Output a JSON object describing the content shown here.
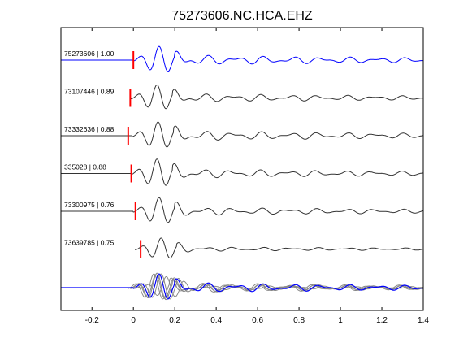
{
  "chart_data": {
    "type": "line",
    "title": "75273606.NC.HCA.EHZ",
    "xlabel": "",
    "ylabel": "",
    "xlim": [
      -0.35,
      1.4
    ],
    "xticks": [
      -0.2,
      0,
      0.2,
      0.4,
      0.6,
      0.8,
      1,
      1.2,
      1.4
    ],
    "xtick_labels": [
      "-0.2",
      "0",
      "0.2",
      "0.4",
      "0.6",
      "0.8",
      "1",
      "1.2",
      "1.4"
    ],
    "grid": false,
    "legend": "none",
    "colors": {
      "reference": "#0000ff",
      "trace": "#333333",
      "pick": "#ff0000",
      "stack_overlay": "#888888"
    },
    "series": [
      {
        "name": "75273606 | 1.00",
        "pick_time": 0.0,
        "lead": 0.0,
        "amp": 1.0,
        "tail": 1.15,
        "color": "#0000ff"
      },
      {
        "name": "73107446 | 0.89",
        "pick_time": -0.015,
        "lead": -0.01,
        "amp": 0.95,
        "tail": 1.05,
        "color": "#333333"
      },
      {
        "name": "73332636 | 0.88",
        "pick_time": -0.025,
        "lead": -0.005,
        "amp": 1.0,
        "tail": 1.15,
        "color": "#333333"
      },
      {
        "name": "335028 | 0.88",
        "pick_time": -0.01,
        "lead": -0.01,
        "amp": 1.05,
        "tail": 1.0,
        "color": "#333333"
      },
      {
        "name": "73300975 | 0.76",
        "pick_time": 0.01,
        "lead": 0.0,
        "amp": 1.0,
        "tail": 0.95,
        "color": "#333333"
      },
      {
        "name": "73639785 | 0.75",
        "pick_time": 0.035,
        "lead": 0.01,
        "amp": 0.8,
        "tail": 0.65,
        "color": "#333333"
      }
    ]
  }
}
